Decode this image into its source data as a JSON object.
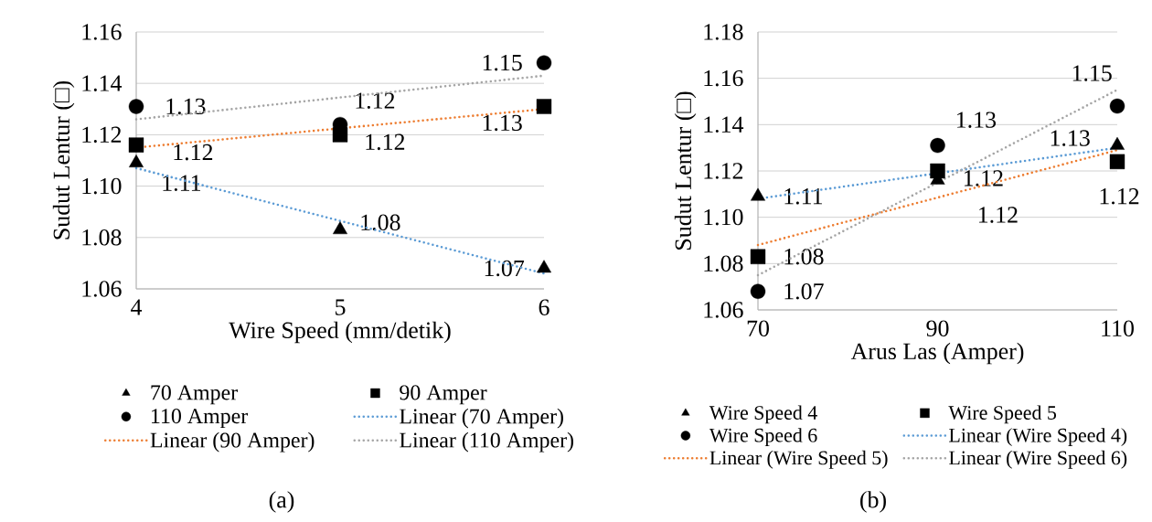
{
  "chart_data": [
    {
      "type": "scatter",
      "xlabel": "Wire Speed (mm/detik)",
      "ylabel": "Sudut Lentur (□)",
      "xlim": [
        4,
        6
      ],
      "xticks": [
        4,
        5,
        6
      ],
      "ylim": [
        1.06,
        1.16
      ],
      "yticks": [
        {
          "value": 1.06,
          "label": "1.06"
        },
        {
          "value": 1.08,
          "label": "1.08"
        },
        {
          "value": 1.1,
          "label": "1.10"
        },
        {
          "value": 1.12,
          "label": "1.12"
        },
        {
          "value": 1.14,
          "label": "1.14"
        },
        {
          "value": 1.16,
          "label": "1.16"
        }
      ],
      "grid": "y",
      "legend": "bottom",
      "annotations": [
        "(a)"
      ],
      "series": [
        {
          "name": "70 Amper",
          "marker": "triangle",
          "color": "#000000",
          "x": [
            4,
            5,
            6
          ],
          "values": [
            1.109,
            1.083,
            1.068
          ],
          "value_labels": [
            "1.11",
            "1.08",
            "1.07"
          ]
        },
        {
          "name": "90 Amper",
          "marker": "square",
          "color": "#000000",
          "x": [
            4,
            5,
            6
          ],
          "values": [
            1.116,
            1.12,
            1.131
          ],
          "value_labels": [
            "1.12",
            "1.12",
            "1.13"
          ]
        },
        {
          "name": "110 Amper",
          "marker": "circle",
          "color": "#000000",
          "x": [
            4,
            5,
            6
          ],
          "values": [
            1.131,
            1.124,
            1.148
          ],
          "value_labels": [
            "1.13",
            "1.12",
            "1.15"
          ]
        },
        {
          "name": "Linear (70 Amper)",
          "type": "line",
          "marker": "none",
          "line_style": "dotted",
          "color": "#5b9bd5",
          "x": [
            4,
            6
          ],
          "values": [
            1.107,
            1.066
          ]
        },
        {
          "name": "Linear (90 Amper)",
          "type": "line",
          "marker": "none",
          "line_style": "dotted",
          "color": "#ed7d31",
          "x": [
            4,
            6
          ],
          "values": [
            1.115,
            1.13
          ]
        },
        {
          "name": "Linear (110 Amper)",
          "type": "line",
          "marker": "none",
          "line_style": "dotted",
          "color": "#a5a5a5",
          "x": [
            4,
            6
          ],
          "values": [
            1.126,
            1.143
          ]
        }
      ]
    },
    {
      "type": "scatter",
      "xlabel": "Arus Las (Amper)",
      "ylabel": "Sudut Lentur (□)",
      "xlim": [
        70,
        110
      ],
      "xticks": [
        70,
        90,
        110
      ],
      "ylim": [
        1.06,
        1.18
      ],
      "yticks": [
        {
          "value": 1.06,
          "label": "1.06"
        },
        {
          "value": 1.08,
          "label": "1.08"
        },
        {
          "value": 1.1,
          "label": "1.10"
        },
        {
          "value": 1.12,
          "label": "1.12"
        },
        {
          "value": 1.14,
          "label": "1.14"
        },
        {
          "value": 1.16,
          "label": "1.16"
        },
        {
          "value": 1.18,
          "label": "1.18"
        }
      ],
      "grid": "y",
      "legend": "bottom",
      "annotations": [
        "(b)"
      ],
      "series": [
        {
          "name": "Wire Speed 4",
          "marker": "triangle",
          "color": "#000000",
          "x": [
            70,
            90,
            110
          ],
          "values": [
            1.109,
            1.116,
            1.131
          ],
          "value_labels": [
            "1.11",
            "1.12",
            "1.13"
          ]
        },
        {
          "name": "Wire Speed 5",
          "marker": "square",
          "color": "#000000",
          "x": [
            70,
            90,
            110
          ],
          "values": [
            1.083,
            1.12,
            1.124
          ],
          "value_labels": [
            "1.08",
            "1.12",
            "1.12"
          ]
        },
        {
          "name": "Wire Speed 6",
          "marker": "circle",
          "color": "#000000",
          "x": [
            70,
            90,
            110
          ],
          "values": [
            1.068,
            1.131,
            1.148
          ],
          "value_labels": [
            "1.07",
            "1.13",
            "1.15"
          ]
        },
        {
          "name": "Linear (Wire Speed 4)",
          "type": "line",
          "marker": "none",
          "line_style": "dotted",
          "color": "#5b9bd5",
          "x": [
            70,
            110
          ],
          "values": [
            1.108,
            1.13
          ]
        },
        {
          "name": "Linear (Wire Speed 5)",
          "type": "line",
          "marker": "none",
          "line_style": "dotted",
          "color": "#ed7d31",
          "x": [
            70,
            110
          ],
          "values": [
            1.088,
            1.129
          ]
        },
        {
          "name": "Linear (Wire Speed 6)",
          "type": "line",
          "marker": "none",
          "line_style": "dotted",
          "color": "#a5a5a5",
          "x": [
            70,
            110
          ],
          "values": [
            1.075,
            1.155
          ]
        }
      ]
    }
  ]
}
